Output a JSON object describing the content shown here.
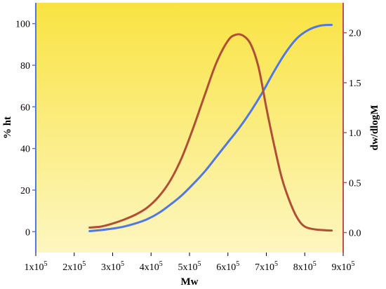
{
  "chart_data": {
    "type": "line",
    "xlabel": "Mw",
    "ylabel_left": "% ht",
    "ylabel_right": "dw/dlogM",
    "x_axis": {
      "range": [
        100000,
        900000
      ],
      "ticks": [
        {
          "value": 100000,
          "base": "1x10",
          "exp": "5"
        },
        {
          "value": 200000,
          "base": "2x10",
          "exp": "5"
        },
        {
          "value": 300000,
          "base": "3x10",
          "exp": "5"
        },
        {
          "value": 400000,
          "base": "4x10",
          "exp": "5"
        },
        {
          "value": 500000,
          "base": "5x10",
          "exp": "5"
        },
        {
          "value": 600000,
          "base": "6x10",
          "exp": "5"
        },
        {
          "value": 700000,
          "base": "7x10",
          "exp": "5"
        },
        {
          "value": 800000,
          "base": "8x10",
          "exp": "5"
        },
        {
          "value": 900000,
          "base": "9x10",
          "exp": "5"
        }
      ]
    },
    "y_left": {
      "range": [
        -10,
        110
      ],
      "ticks": [
        "0",
        "20",
        "40",
        "60",
        "80",
        "100"
      ]
    },
    "y_right": {
      "range": [
        -0.2,
        2.3
      ],
      "ticks": [
        "0.0",
        "0.5",
        "1.0",
        "1.5",
        "2.0"
      ]
    },
    "background_gradient": [
      "#f9e342",
      "#fdf6c0"
    ],
    "series": [
      {
        "axis": "left",
        "color": "#4f78e6",
        "points": [
          [
            240000,
            0.3
          ],
          [
            270000,
            0.8
          ],
          [
            300000,
            1.5
          ],
          [
            330000,
            2.5
          ],
          [
            360000,
            4.0
          ],
          [
            390000,
            6.0
          ],
          [
            420000,
            9.0
          ],
          [
            450000,
            13.0
          ],
          [
            480000,
            17.5
          ],
          [
            510000,
            23.0
          ],
          [
            540000,
            29.0
          ],
          [
            570000,
            36.0
          ],
          [
            600000,
            43.0
          ],
          [
            630000,
            50.0
          ],
          [
            660000,
            58.0
          ],
          [
            690000,
            67.0
          ],
          [
            720000,
            77.0
          ],
          [
            750000,
            86.0
          ],
          [
            780000,
            93.0
          ],
          [
            810000,
            97.0
          ],
          [
            840000,
            99.0
          ],
          [
            870000,
            99.4
          ]
        ]
      },
      {
        "axis": "right",
        "color": "#b04f35",
        "points": [
          [
            240000,
            0.05
          ],
          [
            270000,
            0.06
          ],
          [
            300000,
            0.09
          ],
          [
            330000,
            0.13
          ],
          [
            360000,
            0.18
          ],
          [
            390000,
            0.25
          ],
          [
            420000,
            0.36
          ],
          [
            450000,
            0.52
          ],
          [
            480000,
            0.75
          ],
          [
            510000,
            1.05
          ],
          [
            540000,
            1.38
          ],
          [
            570000,
            1.7
          ],
          [
            600000,
            1.92
          ],
          [
            620000,
            1.98
          ],
          [
            640000,
            1.97
          ],
          [
            660000,
            1.88
          ],
          [
            680000,
            1.65
          ],
          [
            700000,
            1.25
          ],
          [
            720000,
            0.88
          ],
          [
            740000,
            0.55
          ],
          [
            760000,
            0.32
          ],
          [
            780000,
            0.15
          ],
          [
            800000,
            0.06
          ],
          [
            830000,
            0.03
          ],
          [
            870000,
            0.02
          ]
        ]
      }
    ]
  }
}
